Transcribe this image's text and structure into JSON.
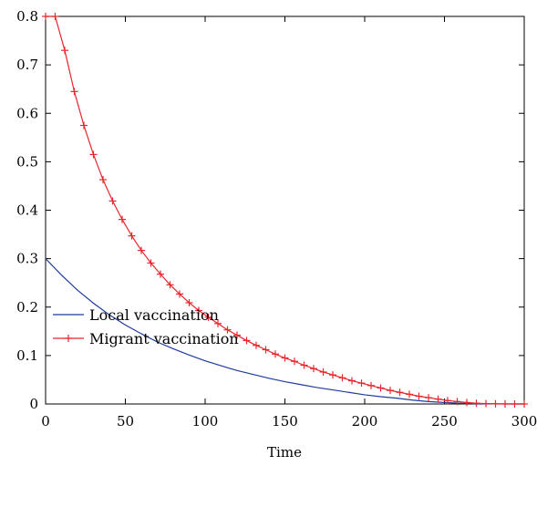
{
  "chart_data": {
    "type": "line",
    "title": "",
    "xlabel": "Time",
    "ylabel": "",
    "xlim": [
      0,
      300
    ],
    "ylim": [
      0,
      0.8
    ],
    "x_ticks": [
      0,
      50,
      100,
      150,
      200,
      250,
      300
    ],
    "x_tick_labels": [
      "0",
      "50",
      "100",
      "150",
      "200",
      "250",
      "300"
    ],
    "y_ticks": [
      0,
      0.1,
      0.2,
      0.3,
      0.4,
      0.5,
      0.6,
      0.7,
      0.8
    ],
    "y_tick_labels": [
      "0",
      "0.1",
      "0.2",
      "0.3",
      "0.4",
      "0.5",
      "0.6",
      "0.7",
      "0.8"
    ],
    "grid": false,
    "legend_position": "bottom-left, below plot",
    "series": [
      {
        "name": "Local vaccination",
        "color": "#1f3c9c",
        "marker": "none",
        "x": [
          0,
          10,
          20,
          30,
          40,
          50,
          60,
          70,
          80,
          90,
          100,
          110,
          120,
          130,
          140,
          150,
          160,
          170,
          180,
          190,
          200,
          210,
          220,
          230,
          240,
          250,
          260,
          270,
          280,
          290,
          300
        ],
        "y": [
          0.3,
          0.266,
          0.235,
          0.208,
          0.184,
          0.163,
          0.145,
          0.128,
          0.114,
          0.101,
          0.089,
          0.079,
          0.069,
          0.061,
          0.053,
          0.046,
          0.04,
          0.034,
          0.029,
          0.024,
          0.019,
          0.015,
          0.012,
          0.008,
          0.005,
          0.003,
          0.0015,
          0.0006,
          0.0002,
          0.0,
          0.0
        ]
      },
      {
        "name": "Migrant vaccination",
        "color": "#e8262b",
        "marker": "+",
        "x": [
          0,
          6,
          12,
          18,
          24,
          30,
          36,
          42,
          48,
          54,
          60,
          66,
          72,
          78,
          84,
          90,
          96,
          102,
          108,
          114,
          120,
          126,
          132,
          138,
          144,
          150,
          156,
          162,
          168,
          174,
          180,
          186,
          192,
          198,
          204,
          210,
          216,
          222,
          228,
          234,
          240,
          246,
          252,
          258,
          264,
          270,
          276,
          282,
          288,
          294,
          300
        ],
        "y": [
          0.8,
          0.8,
          0.73,
          0.645,
          0.575,
          0.515,
          0.463,
          0.419,
          0.381,
          0.347,
          0.317,
          0.291,
          0.268,
          0.246,
          0.227,
          0.209,
          0.193,
          0.179,
          0.166,
          0.153,
          0.142,
          0.131,
          0.121,
          0.112,
          0.103,
          0.095,
          0.088,
          0.08,
          0.073,
          0.066,
          0.06,
          0.054,
          0.048,
          0.043,
          0.038,
          0.033,
          0.028,
          0.024,
          0.02,
          0.016,
          0.013,
          0.01,
          0.007,
          0.005,
          0.003,
          0.0015,
          0.0008,
          0.0003,
          0.0001,
          0.0,
          0.0
        ]
      }
    ]
  }
}
